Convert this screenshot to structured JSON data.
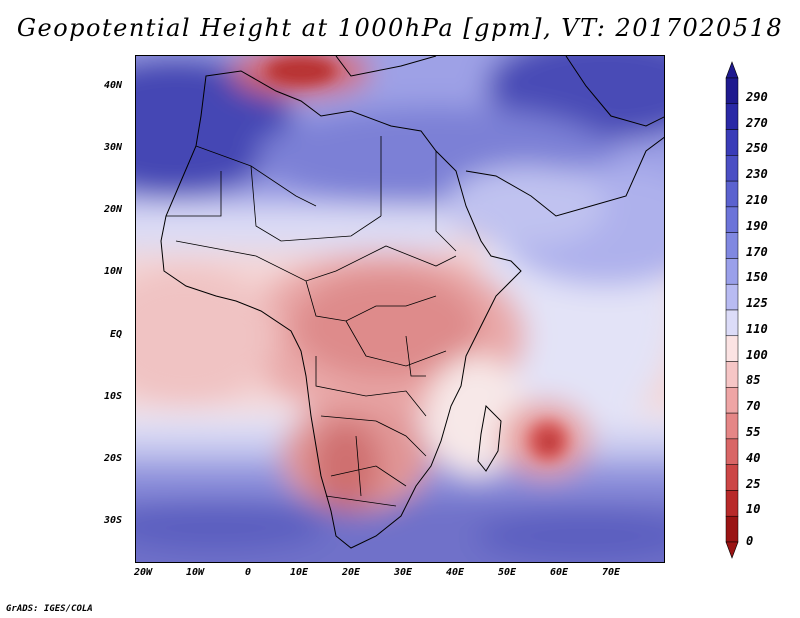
{
  "title": "Geopotential Height at 1000hPa [gpm], VT: 2017020518",
  "credit": "GrADS: IGES/COLA",
  "map": {
    "lat_labels": [
      "40N",
      "30N",
      "20N",
      "10N",
      "EQ",
      "10S",
      "20S",
      "30S"
    ],
    "lon_labels": [
      "20W",
      "10W",
      "0",
      "10E",
      "20E",
      "30E",
      "40E",
      "50E",
      "60E",
      "70E"
    ]
  },
  "colorbar": {
    "labels": [
      "290",
      "270",
      "250",
      "230",
      "210",
      "190",
      "170",
      "150",
      "125",
      "110",
      "100",
      "85",
      "70",
      "55",
      "40",
      "25",
      "10",
      "0"
    ],
    "colors": [
      "#1f1a8f",
      "#2a29a6",
      "#3a3cb8",
      "#4b4fc4",
      "#5b62cf",
      "#6c74d9",
      "#8088e1",
      "#9aa0ea",
      "#b8bbf2",
      "#dcdcf8",
      "#fbe3e3",
      "#f6c6c6",
      "#eea5a5",
      "#e58686",
      "#d96666",
      "#cc4646",
      "#b82a2a",
      "#9a1414"
    ]
  }
}
